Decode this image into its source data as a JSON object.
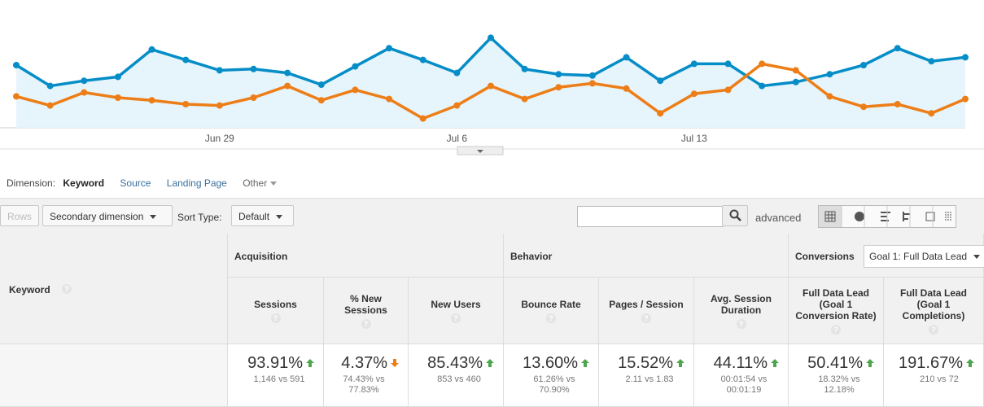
{
  "chart_data": {
    "type": "line",
    "categories": [
      null,
      null,
      null,
      null,
      null,
      null,
      "Jun 29",
      null,
      null,
      null,
      null,
      null,
      null,
      "Jul 6",
      null,
      null,
      null,
      null,
      null,
      null,
      "Jul 13",
      null,
      null,
      null,
      null,
      null,
      null,
      null,
      null
    ],
    "ylim": [
      0,
      100
    ],
    "area": true,
    "series": [
      {
        "color": "#058dc7",
        "values": [
          50,
          34,
          38,
          41,
          62,
          54,
          46,
          47,
          44,
          35,
          49,
          63,
          54,
          44,
          71,
          47,
          43,
          42,
          56,
          38,
          51,
          51,
          34,
          37,
          43,
          50,
          63,
          53,
          56
        ]
      },
      {
        "color": "#ed7e17",
        "values": [
          26,
          19,
          29,
          25,
          23,
          20,
          19,
          25,
          34,
          23,
          31,
          24,
          9,
          19,
          34,
          24,
          33,
          36,
          32,
          13,
          28,
          31,
          51,
          46,
          26,
          18,
          20,
          13,
          24
        ]
      }
    ]
  },
  "dimension_bar": {
    "label": "Dimension:",
    "options": [
      "Keyword",
      "Source",
      "Landing Page",
      "Other"
    ]
  },
  "toolbar": {
    "rows": "Rows",
    "secondary_dimension": "Secondary dimension",
    "sort_label": "Sort Type:",
    "sort_value": "Default",
    "advanced": "advanced"
  },
  "table": {
    "row_header": "Keyword",
    "groups": [
      {
        "label": "Acquisition"
      },
      {
        "label": "Behavior"
      },
      {
        "label": "Conversions",
        "selector": "Goal 1: Full Data Lead"
      }
    ],
    "columns": [
      {
        "label": "Sessions",
        "value": "93.91%",
        "trend": "up",
        "detail": "1,146 vs 591"
      },
      {
        "label": "% New Sessions",
        "value": "4.37%",
        "trend": "down",
        "detail": "74.43% vs 77.83%"
      },
      {
        "label": "New Users",
        "value": "85.43%",
        "trend": "up",
        "detail": "853 vs 460"
      },
      {
        "label": "Bounce Rate",
        "value": "13.60%",
        "trend": "up",
        "detail": "61.26% vs 70.90%"
      },
      {
        "label": "Pages / Session",
        "value": "15.52%",
        "trend": "up",
        "detail": "2.11 vs 1.83"
      },
      {
        "label": "Avg. Session Duration",
        "value": "44.11%",
        "trend": "up",
        "detail": "00:01:54 vs 00:01:19"
      },
      {
        "label": "Full Data Lead (Goal 1 Conversion Rate)",
        "value": "50.41%",
        "trend": "up",
        "detail": "18.32% vs 12.18%"
      },
      {
        "label": "Full Data Lead (Goal 1 Completions)",
        "value": "191.67%",
        "trend": "up",
        "detail": "210 vs 72"
      }
    ]
  }
}
